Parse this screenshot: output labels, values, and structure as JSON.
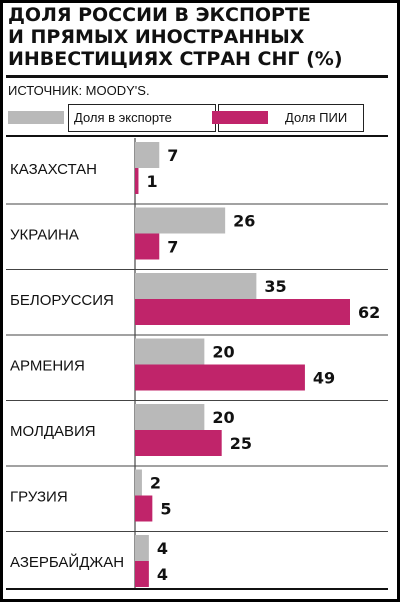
{
  "chart_data": {
    "type": "bar",
    "title": "ДОЛЯ РОССИИ В ЭКСПОРТЕ\nИ ПРЯМЫХ ИНОСТРАННЫХ\nИНВЕСТИЦИЯХ СТРАН СНГ (%)",
    "source": "ИСТОЧНИК: MOODY'S.",
    "orientation": "horizontal",
    "categories": [
      "КАЗАХСТАН",
      "УКРАИНА",
      "БЕЛОРУССИЯ",
      "АРМЕНИЯ",
      "МОЛДАВИЯ",
      "ГРУЗИЯ",
      "АЗЕРБАЙДЖАН"
    ],
    "series": [
      {
        "name": "Доля в экспорте",
        "color": "#b9b9b9",
        "values": [
          7,
          26,
          35,
          20,
          20,
          2,
          4
        ]
      },
      {
        "name": "Доля ПИИ",
        "color": "#c0246a",
        "values": [
          1,
          7,
          62,
          49,
          25,
          5,
          4
        ]
      }
    ],
    "xlim": [
      0,
      62
    ],
    "grid": false,
    "legend": "top"
  }
}
